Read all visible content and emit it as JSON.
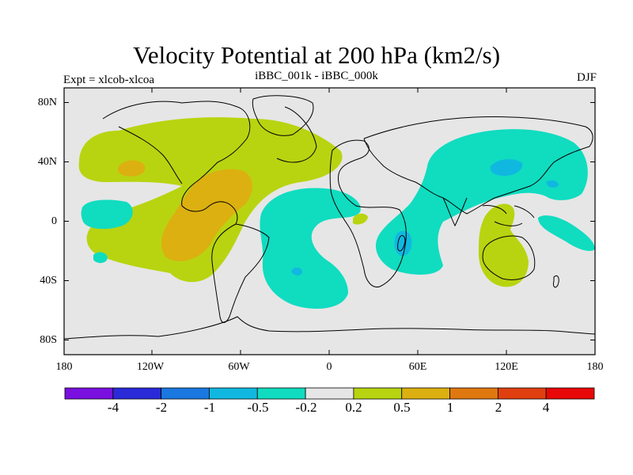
{
  "title": "Velocity Potential at 200 hPa (km2/s)",
  "left_label": "Expt = xlcob-xlcoa",
  "center_label": "iBBC_001k - iBBC_000k",
  "right_label": "DJF",
  "lat_ticks": [
    "80N",
    "40N",
    "0",
    "40S",
    "80S"
  ],
  "lon_ticks": [
    "180",
    "120W",
    "60W",
    "0",
    "60E",
    "120E",
    "180"
  ],
  "colorbar": {
    "colors": [
      "#7a10e0",
      "#2a2ad8",
      "#1a78e0",
      "#10b8e0",
      "#10dcc0",
      "#e6e6e6",
      "#b8d410",
      "#dcb010",
      "#e07810",
      "#e04010",
      "#e80808"
    ],
    "labels": [
      "-4",
      "-2",
      "-1",
      "-0.5",
      "-0.2",
      "0.2",
      "0.5",
      "1",
      "2",
      "4"
    ]
  },
  "colors": {
    "land_bg": "#e6e6e6",
    "pos1": "#b8d410",
    "pos2": "#dcb010",
    "neg1": "#10dcc0",
    "neg2": "#10b8e0"
  }
}
